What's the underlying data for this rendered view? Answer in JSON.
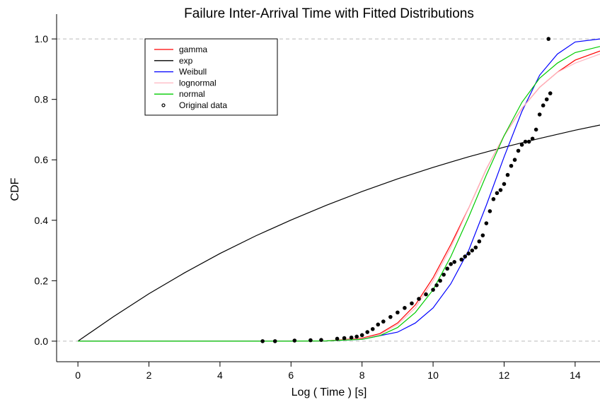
{
  "chart_data": {
    "type": "line",
    "title": "Failure Inter-Arrival Time with Fitted Distributions",
    "xlabel": "Log ( Time ) [s]",
    "ylabel": "CDF",
    "xlim": [
      -0.6,
      14.7
    ],
    "ylim": [
      -0.04,
      1.04
    ],
    "x_ticks": [
      0,
      2,
      4,
      6,
      8,
      10,
      12,
      14
    ],
    "y_ticks": [
      0.0,
      0.2,
      0.4,
      0.6,
      0.8,
      1.0
    ],
    "x_tick_labels": [
      "0",
      "2",
      "4",
      "6",
      "8",
      "10",
      "12",
      "14"
    ],
    "y_tick_labels": [
      "0.0",
      "0.2",
      "0.4",
      "0.6",
      "0.8",
      "1.0"
    ],
    "reference_lines_y": [
      0,
      1
    ],
    "legend_position": "top-left",
    "series": [
      {
        "name": "gamma",
        "color": "#ff0000",
        "x": [
          0,
          2,
          4,
          6,
          7,
          8,
          8.5,
          9,
          9.5,
          10,
          10.5,
          11,
          11.5,
          12,
          12.5,
          13,
          13.5,
          14,
          14.7
        ],
        "y": [
          0,
          0,
          0,
          0,
          0.001,
          0.01,
          0.025,
          0.06,
          0.12,
          0.21,
          0.32,
          0.44,
          0.57,
          0.68,
          0.77,
          0.84,
          0.89,
          0.93,
          0.96
        ]
      },
      {
        "name": "exp",
        "color": "#000000",
        "x": [
          0,
          1,
          2,
          3,
          4,
          5,
          6,
          7,
          8,
          9,
          10,
          11,
          12,
          13,
          14,
          14.7
        ],
        "y": [
          0,
          0.081,
          0.157,
          0.226,
          0.29,
          0.348,
          0.401,
          0.45,
          0.495,
          0.537,
          0.575,
          0.61,
          0.642,
          0.671,
          0.698,
          0.715
        ]
      },
      {
        "name": "Weibull",
        "color": "#0000ff",
        "x": [
          0,
          2,
          4,
          6,
          7,
          8,
          9,
          9.5,
          10,
          10.5,
          11,
          11.5,
          12,
          12.5,
          13,
          13.5,
          14,
          14.7
        ],
        "y": [
          0,
          0,
          0,
          0,
          0.001,
          0.006,
          0.03,
          0.06,
          0.11,
          0.19,
          0.3,
          0.45,
          0.61,
          0.76,
          0.88,
          0.95,
          0.99,
          1.0
        ]
      },
      {
        "name": "lognormal",
        "color": "#ffb6c1",
        "x": [
          0,
          2,
          4,
          6,
          7,
          8,
          8.5,
          9,
          9.5,
          10,
          10.5,
          11,
          11.5,
          12,
          12.5,
          13,
          13.5,
          14,
          14.7
        ],
        "y": [
          0,
          0,
          0,
          0,
          0.001,
          0.008,
          0.022,
          0.055,
          0.11,
          0.2,
          0.31,
          0.44,
          0.57,
          0.68,
          0.77,
          0.84,
          0.89,
          0.92,
          0.95
        ]
      },
      {
        "name": "normal",
        "color": "#00cc00",
        "x": [
          0,
          2,
          4,
          6,
          7,
          8,
          8.5,
          9,
          9.5,
          10,
          10.5,
          11,
          11.5,
          12,
          12.5,
          13,
          13.5,
          14,
          14.7
        ],
        "y": [
          0,
          0,
          0,
          0,
          0.001,
          0.006,
          0.018,
          0.045,
          0.095,
          0.17,
          0.28,
          0.41,
          0.55,
          0.68,
          0.79,
          0.87,
          0.92,
          0.955,
          0.975
        ]
      }
    ],
    "points": {
      "name": "Original data",
      "color": "#000000",
      "x": [
        5.2,
        5.55,
        6.1,
        6.55,
        6.85,
        7.3,
        7.5,
        7.7,
        7.85,
        8.0,
        8.15,
        8.3,
        8.45,
        8.6,
        8.8,
        9.0,
        9.2,
        9.4,
        9.6,
        9.8,
        10.0,
        10.1,
        10.2,
        10.3,
        10.4,
        10.5,
        10.6,
        10.8,
        10.9,
        11.0,
        11.1,
        11.2,
        11.3,
        11.4,
        11.5,
        11.6,
        11.7,
        11.8,
        11.9,
        12.0,
        12.1,
        12.2,
        12.3,
        12.4,
        12.5,
        12.6,
        12.7,
        12.8,
        12.9,
        13.0,
        13.1,
        13.2,
        13.3,
        13.25
      ],
      "y": [
        0.0,
        0.0,
        0.002,
        0.003,
        0.004,
        0.008,
        0.01,
        0.012,
        0.015,
        0.02,
        0.03,
        0.04,
        0.055,
        0.065,
        0.08,
        0.095,
        0.11,
        0.125,
        0.14,
        0.155,
        0.17,
        0.185,
        0.2,
        0.22,
        0.24,
        0.255,
        0.262,
        0.27,
        0.28,
        0.29,
        0.3,
        0.31,
        0.33,
        0.35,
        0.39,
        0.43,
        0.47,
        0.49,
        0.5,
        0.52,
        0.55,
        0.58,
        0.6,
        0.63,
        0.65,
        0.66,
        0.66,
        0.67,
        0.7,
        0.75,
        0.78,
        0.8,
        0.82,
        1.0
      ]
    }
  }
}
